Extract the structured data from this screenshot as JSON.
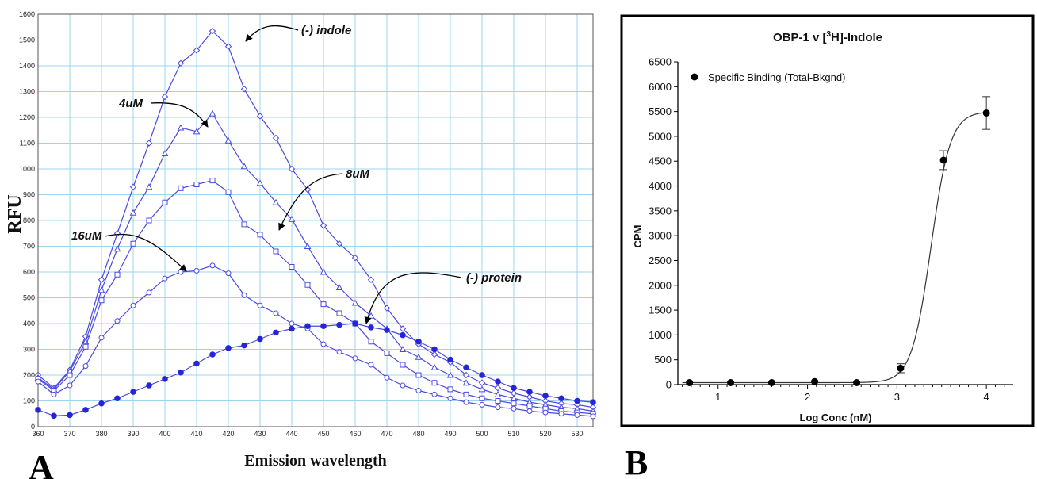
{
  "panels": {
    "a_letter": "A",
    "b_letter": "B"
  },
  "chart_data": [
    {
      "panel": "A",
      "type": "line",
      "xlabel": "Emission wavelength",
      "ylabel": "RFU",
      "xlim": [
        360,
        535
      ],
      "ylim": [
        0,
        1600
      ],
      "x_ticks": [
        360,
        370,
        380,
        390,
        400,
        410,
        420,
        430,
        440,
        450,
        460,
        470,
        480,
        490,
        500,
        510,
        520,
        530
      ],
      "y_ticks": [
        0,
        100,
        200,
        300,
        400,
        500,
        600,
        700,
        800,
        900,
        1000,
        1100,
        1200,
        1300,
        1400,
        1500,
        1600
      ],
      "grid": true,
      "line_color": "#4a4ae0",
      "x": [
        360,
        365,
        370,
        375,
        380,
        385,
        390,
        395,
        400,
        405,
        410,
        415,
        420,
        425,
        430,
        435,
        440,
        445,
        450,
        455,
        460,
        465,
        470,
        475,
        480,
        485,
        490,
        495,
        500,
        505,
        510,
        515,
        520,
        525,
        530,
        535
      ],
      "series": [
        {
          "marker": "diamond",
          "values": [
            200,
            150,
            220,
            350,
            570,
            750,
            930,
            1100,
            1280,
            1410,
            1460,
            1535,
            1475,
            1310,
            1205,
            1120,
            1000,
            920,
            780,
            710,
            655,
            570,
            460,
            380,
            320,
            280,
            250,
            200,
            170,
            150,
            130,
            115,
            100,
            90,
            85,
            75
          ]
        },
        {
          "marker": "triangle",
          "values": [
            190,
            145,
            215,
            330,
            530,
            690,
            830,
            930,
            1060,
            1160,
            1145,
            1215,
            1110,
            1010,
            945,
            870,
            805,
            700,
            600,
            540,
            480,
            430,
            380,
            300,
            270,
            230,
            200,
            170,
            145,
            125,
            110,
            95,
            85,
            75,
            70,
            60
          ]
        },
        {
          "marker": "square",
          "values": [
            185,
            140,
            200,
            310,
            490,
            590,
            710,
            800,
            870,
            925,
            940,
            955,
            910,
            785,
            745,
            680,
            620,
            550,
            475,
            440,
            400,
            330,
            285,
            240,
            200,
            170,
            145,
            125,
            110,
            100,
            90,
            80,
            70,
            60,
            55,
            50
          ]
        },
        {
          "marker": "circle-open",
          "values": [
            175,
            125,
            160,
            235,
            345,
            410,
            470,
            520,
            575,
            600,
            605,
            625,
            595,
            510,
            470,
            440,
            400,
            380,
            320,
            290,
            265,
            240,
            190,
            160,
            140,
            125,
            110,
            95,
            85,
            75,
            70,
            60,
            55,
            50,
            45,
            40
          ]
        },
        {
          "marker": "circle-filled",
          "values": [
            65,
            42,
            45,
            65,
            90,
            110,
            135,
            160,
            185,
            210,
            245,
            280,
            305,
            315,
            340,
            365,
            380,
            390,
            390,
            395,
            400,
            385,
            375,
            355,
            330,
            300,
            260,
            230,
            200,
            175,
            150,
            135,
            120,
            110,
            100,
            95
          ]
        }
      ],
      "annotations": [
        "(-) indole",
        "4uM",
        "8uM",
        "16uM",
        "(-) protein"
      ]
    },
    {
      "panel": "B",
      "type": "scatter",
      "title": "OBP-1 v [3H]-Indole",
      "title_parts": [
        "OBP-1 v [",
        "3",
        "H]-Indole"
      ],
      "xlabel": "Log Conc (nM)",
      "ylabel": "CPM",
      "xlim": [
        0.55,
        4.3
      ],
      "ylim": [
        0,
        6500
      ],
      "x_ticks": [
        1,
        2,
        3,
        4
      ],
      "y_ticks": [
        0,
        500,
        1000,
        1500,
        2000,
        2500,
        3000,
        3500,
        4000,
        4500,
        5000,
        5500,
        6000,
        6500
      ],
      "grid": false,
      "legend": "top-left",
      "series": [
        {
          "name": "Specific Binding (Total-Bkgnd)",
          "x": [
            0.68,
            1.14,
            1.6,
            2.08,
            2.55,
            3.04,
            3.52,
            4.0
          ],
          "y": [
            40,
            40,
            40,
            60,
            40,
            330,
            4520,
            5470
          ],
          "err": [
            0,
            0,
            0,
            0,
            0,
            90,
            190,
            330
          ]
        }
      ],
      "fit": {
        "bottom": 40,
        "top": 5500,
        "logEC50": 3.38,
        "hill": 4.0
      }
    }
  ]
}
